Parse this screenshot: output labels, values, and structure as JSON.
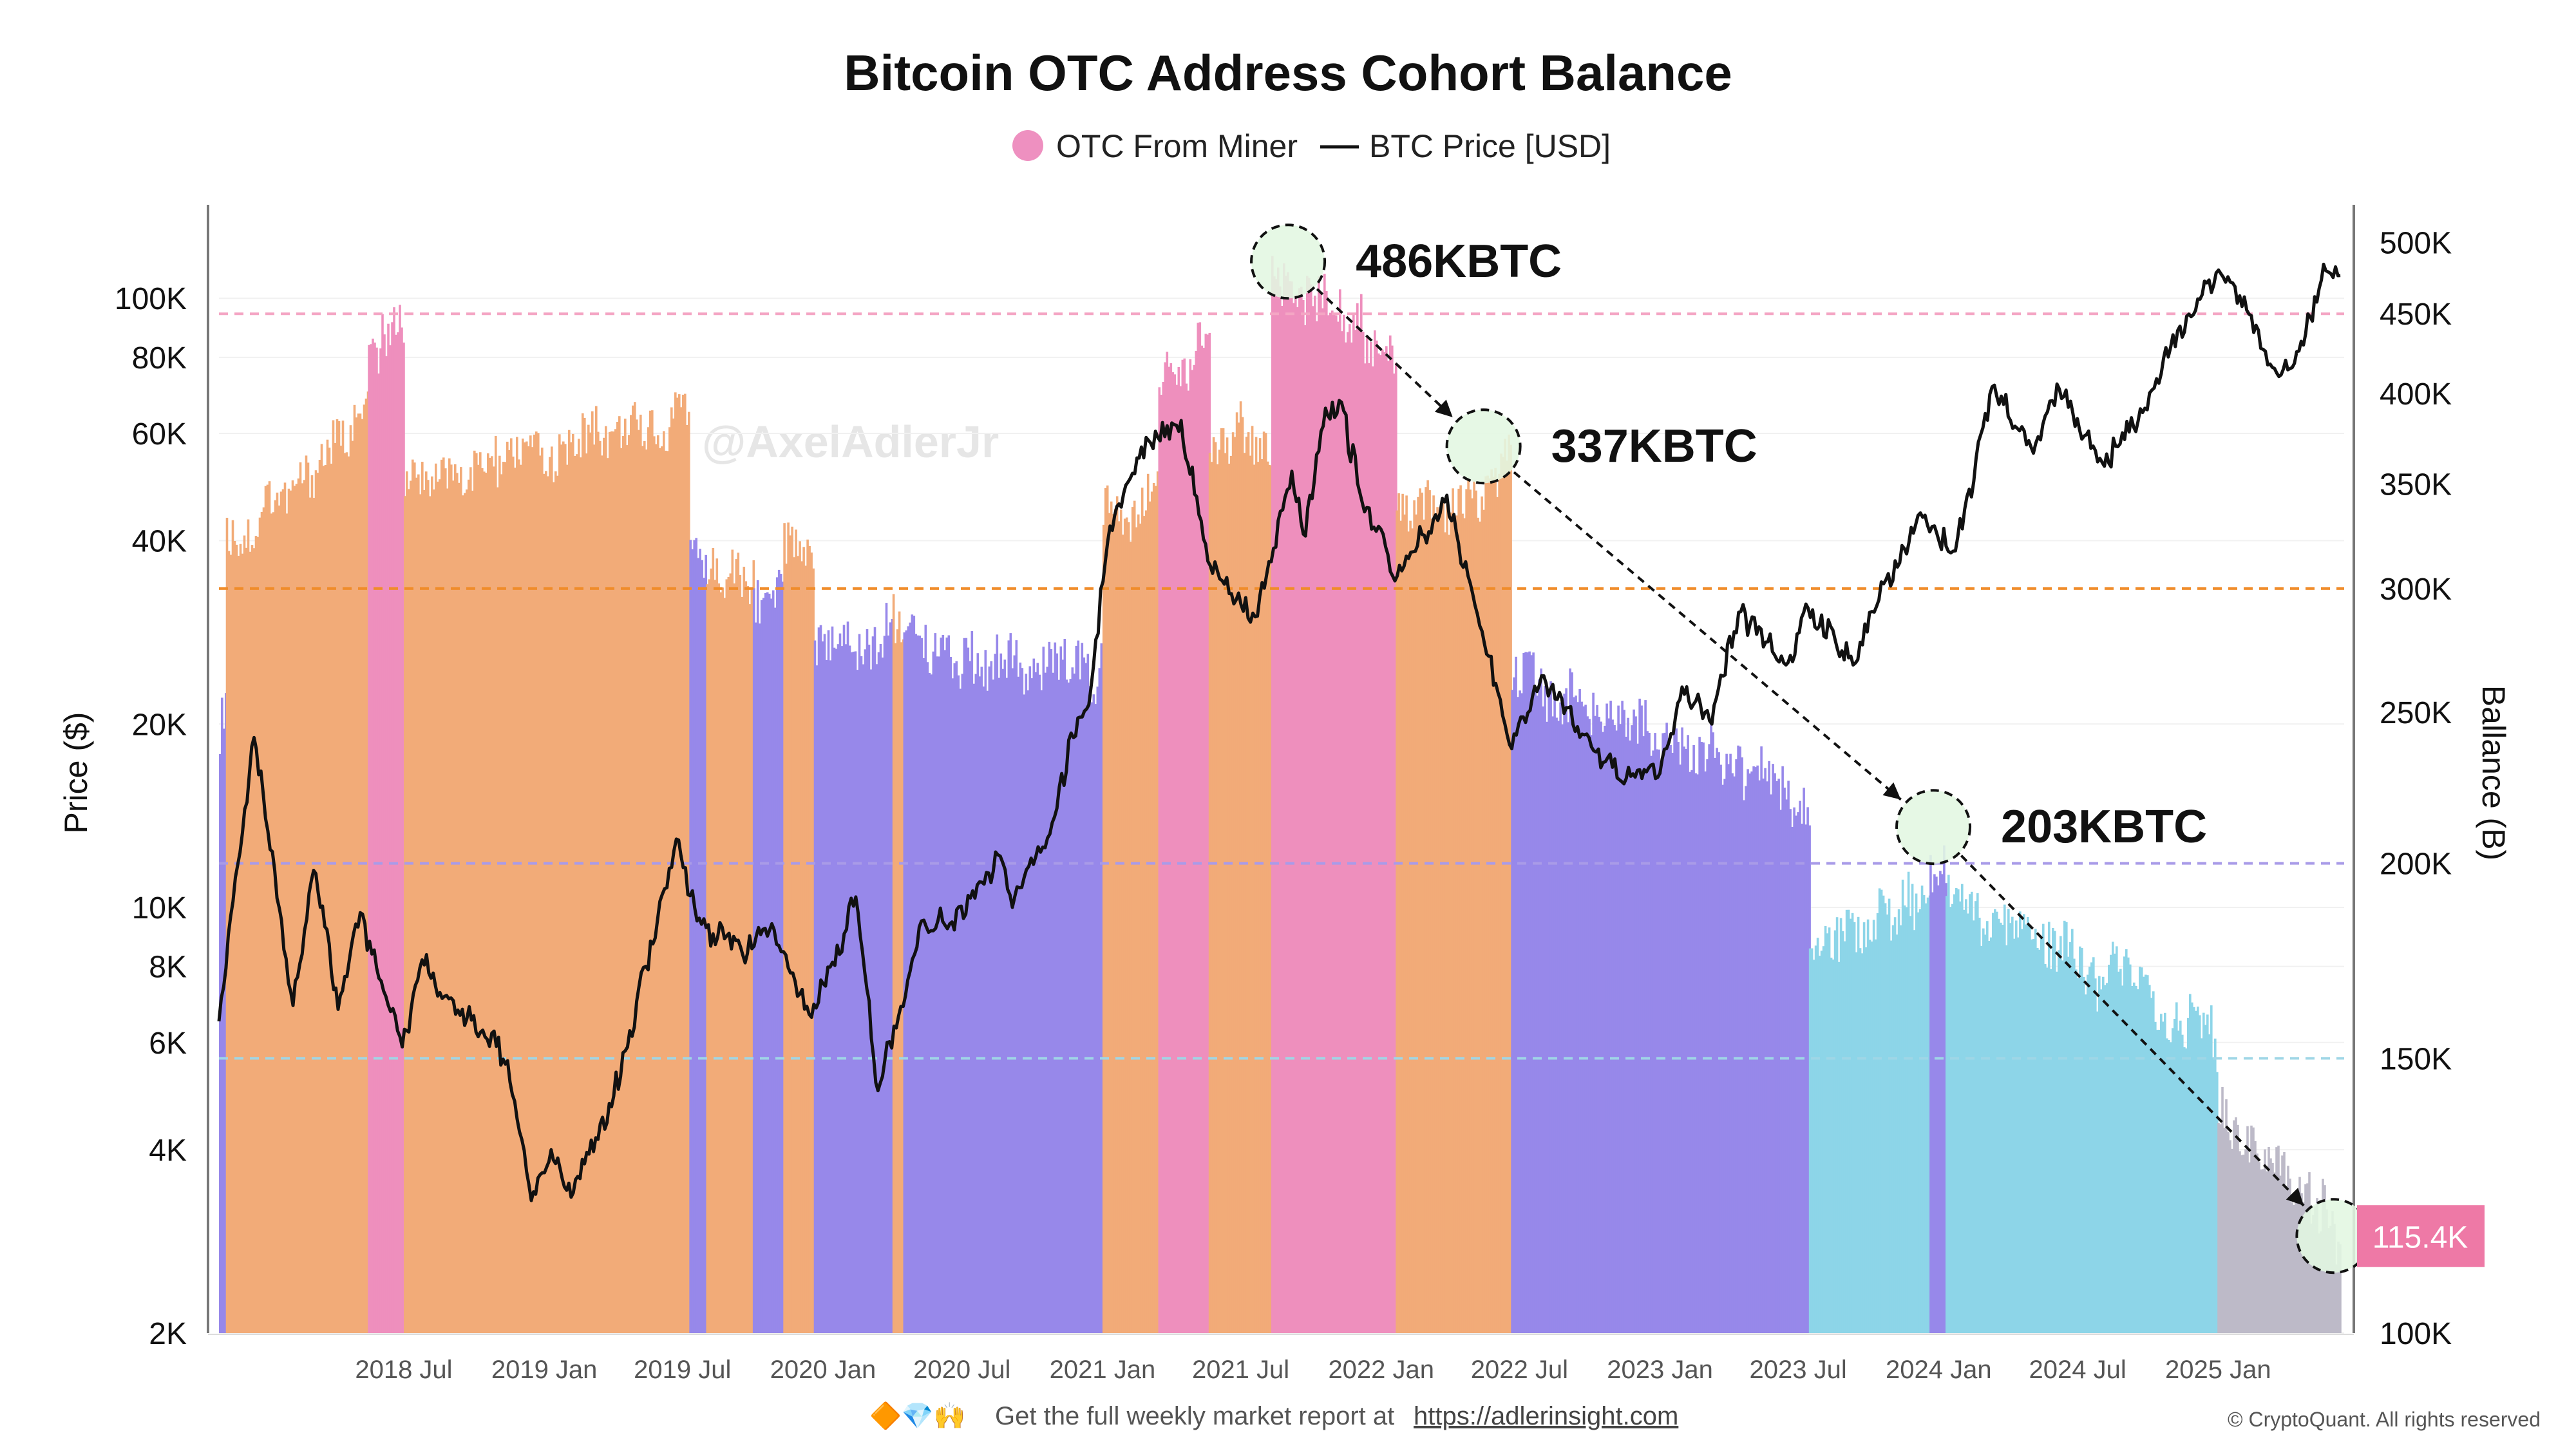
{
  "chart_data": {
    "type": "bar+line",
    "title": "Bitcoin OTC Address Cohort Balance",
    "legend": {
      "position": "top-center",
      "items": [
        {
          "label": "OTC From Miner",
          "symbol": "dot",
          "color": "#ee90c0"
        },
        {
          "label": "BTC Price [USD]",
          "symbol": "line",
          "color": "#111111"
        }
      ]
    },
    "y_left": {
      "label": "Price ($)",
      "scale": "log",
      "range": [
        2000,
        140000
      ],
      "ticks": [
        {
          "v": 2000,
          "t": "2K"
        },
        {
          "v": 4000,
          "t": "4K"
        },
        {
          "v": 6000,
          "t": "6K"
        },
        {
          "v": 8000,
          "t": "8K"
        },
        {
          "v": 10000,
          "t": "10K"
        },
        {
          "v": 20000,
          "t": "20K"
        },
        {
          "v": 40000,
          "t": "40K"
        },
        {
          "v": 60000,
          "t": "60K"
        },
        {
          "v": 80000,
          "t": "80K"
        },
        {
          "v": 100000,
          "t": "100K"
        }
      ]
    },
    "y_right": {
      "label": "Ballance (B)",
      "scale": "log",
      "range": [
        100000,
        525000
      ],
      "ticks": [
        {
          "v": 100000,
          "t": "100K"
        },
        {
          "v": 150000,
          "t": "150K"
        },
        {
          "v": 200000,
          "t": "200K"
        },
        {
          "v": 250000,
          "t": "250K"
        },
        {
          "v": 300000,
          "t": "300K"
        },
        {
          "v": 350000,
          "t": "350K"
        },
        {
          "v": 400000,
          "t": "400K"
        },
        {
          "v": 450000,
          "t": "450K"
        },
        {
          "v": 500000,
          "t": "500K"
        }
      ]
    },
    "x_axis": {
      "range": [
        "2017-11-01",
        "2025-06-15"
      ],
      "ticks": [
        {
          "date": "2018-07-01",
          "t": "2018 Jul"
        },
        {
          "date": "2019-01-01",
          "t": "2019 Jan"
        },
        {
          "date": "2019-07-01",
          "t": "2019 Jul"
        },
        {
          "date": "2020-01-01",
          "t": "2020 Jan"
        },
        {
          "date": "2020-07-01",
          "t": "2020 Jul"
        },
        {
          "date": "2021-01-01",
          "t": "2021 Jan"
        },
        {
          "date": "2021-07-01",
          "t": "2021 Jul"
        },
        {
          "date": "2022-01-01",
          "t": "2022 Jan"
        },
        {
          "date": "2022-07-01",
          "t": "2022 Jul"
        },
        {
          "date": "2023-01-01",
          "t": "2023 Jan"
        },
        {
          "date": "2023-07-01",
          "t": "2023 Jul"
        },
        {
          "date": "2024-01-01",
          "t": "2024 Jan"
        },
        {
          "date": "2024-07-01",
          "t": "2024 Jul"
        },
        {
          "date": "2025-01-01",
          "t": "2025 Jan"
        }
      ]
    },
    "reference_lines": [
      {
        "axis": "right",
        "value": 450000,
        "color": "#f4a6c4"
      },
      {
        "axis": "right",
        "value": 300000,
        "color": "#f08c2a"
      },
      {
        "axis": "right",
        "value": 200000,
        "color": "#a99be8"
      },
      {
        "axis": "right",
        "value": 150000,
        "color": "#9fd6e6"
      }
    ],
    "regime_colors": {
      "pink": "#ee8fbd",
      "orange": "#f2ab78",
      "purple": "#9788ea",
      "cyan": "#8dd5e8",
      "gray": "#bdbac8"
    },
    "balance_segments": [
      {
        "start": "2017-11-01",
        "end": "2017-11-10",
        "color": "purple",
        "v0": 250000,
        "v1": 265000
      },
      {
        "start": "2017-11-10",
        "end": "2018-05-15",
        "color": "orange",
        "v0": 320000,
        "v1": 390000
      },
      {
        "start": "2018-05-15",
        "end": "2018-07-01",
        "color": "pink",
        "v0": 420000,
        "v1": 438000
      },
      {
        "start": "2018-07-01",
        "end": "2019-07-10",
        "color": "orange",
        "v0": 350000,
        "v1": 385000
      },
      {
        "start": "2019-07-10",
        "end": "2019-08-01",
        "color": "purple",
        "v0": 312000,
        "v1": 305000
      },
      {
        "start": "2019-08-01",
        "end": "2019-10-01",
        "color": "orange",
        "v0": 305000,
        "v1": 300000
      },
      {
        "start": "2019-10-01",
        "end": "2019-11-10",
        "color": "purple",
        "v0": 296000,
        "v1": 292000
      },
      {
        "start": "2019-11-10",
        "end": "2019-12-20",
        "color": "orange",
        "v0": 330000,
        "v1": 320000
      },
      {
        "start": "2019-12-20",
        "end": "2020-04-01",
        "color": "purple",
        "v0": 275000,
        "v1": 285000
      },
      {
        "start": "2020-04-01",
        "end": "2020-04-15",
        "color": "orange",
        "v0": 290000,
        "v1": 280000
      },
      {
        "start": "2020-04-15",
        "end": "2021-01-01",
        "color": "purple",
        "v0": 275000,
        "v1": 268000
      },
      {
        "start": "2021-01-01",
        "end": "2021-03-15",
        "color": "orange",
        "v0": 330000,
        "v1": 350000
      },
      {
        "start": "2021-03-15",
        "end": "2021-05-20",
        "color": "pink",
        "v0": 415000,
        "v1": 425000
      },
      {
        "start": "2021-05-20",
        "end": "2021-08-10",
        "color": "orange",
        "v0": 380000,
        "v1": 375000
      },
      {
        "start": "2021-08-10",
        "end": "2022-01-20",
        "color": "pink",
        "v0": 470000,
        "v1": 430000
      },
      {
        "start": "2022-01-20",
        "end": "2022-06-20",
        "color": "orange",
        "v0": 330000,
        "v1": 360000
      },
      {
        "start": "2022-06-20",
        "end": "2023-07-15",
        "color": "purple",
        "v0": 265000,
        "v1": 220000
      },
      {
        "start": "2023-07-15",
        "end": "2023-12-20",
        "color": "cyan",
        "v0": 180000,
        "v1": 190000
      },
      {
        "start": "2023-12-20",
        "end": "2024-01-10",
        "color": "purple",
        "v0": 200000,
        "v1": 198000
      },
      {
        "start": "2024-01-10",
        "end": "2024-12-31",
        "color": "cyan",
        "v0": 190000,
        "v1": 155000
      },
      {
        "start": "2024-12-31",
        "end": "2025-06-10",
        "color": "gray",
        "v0": 140000,
        "v1": 115400
      }
    ],
    "btc_price": {
      "dates": [
        "2017-11-01",
        "2017-12-17",
        "2018-02-06",
        "2018-03-05",
        "2018-04-06",
        "2018-05-05",
        "2018-06-29",
        "2018-07-25",
        "2018-09-01",
        "2018-11-14",
        "2018-12-15",
        "2019-01-10",
        "2019-02-08",
        "2019-04-02",
        "2019-05-14",
        "2019-06-26",
        "2019-07-20",
        "2019-09-24",
        "2019-10-26",
        "2019-12-17",
        "2020-02-13",
        "2020-03-13",
        "2020-05-09",
        "2020-06-15",
        "2020-07-27",
        "2020-08-17",
        "2020-09-05",
        "2020-10-21",
        "2020-11-24",
        "2020-12-17",
        "2021-01-08",
        "2021-02-21",
        "2021-04-14",
        "2021-05-19",
        "2021-06-22",
        "2021-07-20",
        "2021-09-06",
        "2021-09-21",
        "2021-10-20",
        "2021-11-10",
        "2021-12-04",
        "2022-01-22",
        "2022-03-28",
        "2022-05-10",
        "2022-06-18",
        "2022-07-30",
        "2022-09-15",
        "2022-11-09",
        "2023-01-01",
        "2023-01-30",
        "2023-03-10",
        "2023-04-14",
        "2023-06-15",
        "2023-07-14",
        "2023-09-11",
        "2023-10-24",
        "2023-12-05",
        "2024-01-23",
        "2024-03-14",
        "2024-05-01",
        "2024-06-07",
        "2024-08-05",
        "2024-09-27",
        "2024-11-12",
        "2024-12-17",
        "2025-01-20",
        "2025-03-10",
        "2025-04-08",
        "2025-05-22",
        "2025-06-10"
      ],
      "values": [
        6500,
        19000,
        6900,
        11500,
        6800,
        9800,
        5900,
        8200,
        7100,
        5600,
        3300,
        4000,
        3400,
        4900,
        8000,
        12900,
        9500,
        8400,
        9400,
        6600,
        10400,
        5000,
        9500,
        9400,
        11000,
        12200,
        10000,
        13000,
        19000,
        23000,
        40000,
        57000,
        63000,
        37000,
        31500,
        30000,
        52000,
        41000,
        66000,
        67500,
        48000,
        35000,
        47500,
        29000,
        18500,
        24000,
        19800,
        16200,
        16600,
        23000,
        20000,
        30500,
        25000,
        31000,
        25000,
        34500,
        44000,
        38500,
        72000,
        57000,
        71000,
        53000,
        66000,
        90000,
        106000,
        106000,
        78000,
        77000,
        111000,
        109000
      ]
    },
    "annotations": [
      {
        "text": "486KBTC",
        "date": "2021-09-01",
        "balance": 486000
      },
      {
        "text": "337KBTC",
        "date": "2022-05-15",
        "balance": 370000
      },
      {
        "text": "203KBTC",
        "date": "2023-12-25",
        "balance": 211000
      },
      {
        "text": "115.4K",
        "date": "2025-06-01",
        "balance": 115400,
        "badge": true
      }
    ]
  },
  "watermark": "@AxelAdlerJr",
  "footer": {
    "emojis": "🔶💎🙌",
    "text": "Get the full weekly market report at",
    "link": "https://adlerinsight.com",
    "copyright": "© CryptoQuant. All rights reserved"
  }
}
